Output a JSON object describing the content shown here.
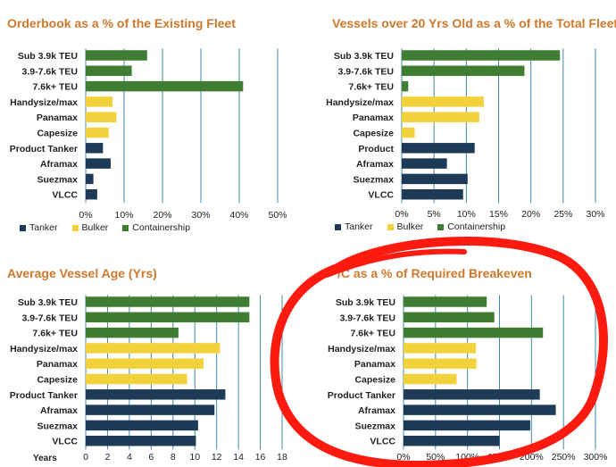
{
  "colors": {
    "tanker": "#1d3b57",
    "bulker": "#f2d23a",
    "containership": "#3e7d32",
    "title": "#d0782c",
    "gridline": "#3f8aa6",
    "annotation": "#ff1a10"
  },
  "legend": {
    "tanker": "Tanker",
    "bulker": "Bulker",
    "containership": "Containership"
  },
  "chart_data": [
    {
      "type": "bar",
      "orientation": "horizontal",
      "title": "Orderbook as a % of the Existing Fleet",
      "categories": [
        "Sub 3.9k TEU",
        "3.9-7.6k TEU",
        "7.6k+ TEU",
        "Handysize/max",
        "Panamax",
        "Capesize",
        "Product Tanker",
        "Aframax",
        "Suezmax",
        "VLCC"
      ],
      "values": [
        16,
        12,
        41,
        7,
        8,
        6,
        4.5,
        6.5,
        2,
        3
      ],
      "groups": [
        "containership",
        "containership",
        "containership",
        "bulker",
        "bulker",
        "bulker",
        "tanker",
        "tanker",
        "tanker",
        "tanker"
      ],
      "ticks": [
        "0%",
        "10%",
        "20%",
        "30%",
        "40%",
        "50%"
      ],
      "xlim": [
        0,
        50
      ],
      "grid": true,
      "legend_position": "bottom"
    },
    {
      "type": "bar",
      "orientation": "horizontal",
      "title": "Vessels over 20 Yrs Old as a % of the Total Fleet",
      "categories": [
        "Sub 3.9k TEU",
        "3.9-7.6k TEU",
        "7.6k+ TEU",
        "Handysize/max",
        "Panamax",
        "Capesize",
        "Product",
        "Aframax",
        "Suezmax",
        "VLCC"
      ],
      "values": [
        24.5,
        19,
        1,
        12.7,
        12,
        2,
        11.3,
        7,
        10.2,
        9.5
      ],
      "groups": [
        "containership",
        "containership",
        "containership",
        "bulker",
        "bulker",
        "bulker",
        "tanker",
        "tanker",
        "tanker",
        "tanker"
      ],
      "ticks": [
        "0%",
        "5%",
        "10%",
        "15%",
        "20%",
        "25%",
        "30%"
      ],
      "xlim": [
        0,
        30
      ],
      "grid": true,
      "legend_position": "bottom"
    },
    {
      "type": "bar",
      "orientation": "horizontal",
      "title": "Average Vessel Age (Yrs)",
      "categories": [
        "Sub 3.9k TEU",
        "3.9-7.6k TEU",
        "7.6k+ TEU",
        "Handysize/max",
        "Panamax",
        "Capesize",
        "Product Tanker",
        "Aframax",
        "Suezmax",
        "VLCC"
      ],
      "values": [
        15,
        15,
        8.5,
        12.3,
        10.8,
        9.3,
        12.8,
        11.8,
        10.3,
        10.1
      ],
      "groups": [
        "containership",
        "containership",
        "containership",
        "bulker",
        "bulker",
        "bulker",
        "tanker",
        "tanker",
        "tanker",
        "tanker"
      ],
      "ticks": [
        "0",
        "2",
        "4",
        "6",
        "8",
        "10",
        "12",
        "14",
        "16",
        "18"
      ],
      "xlim": [
        0,
        18
      ],
      "xlabel": "Years",
      "grid": true
    },
    {
      "type": "bar",
      "orientation": "horizontal",
      "title": "T/C as a % of Required Breakeven",
      "title_visible": "/C as a % of Required Breakeven",
      "categories": [
        "Sub 3.9k TEU",
        "3.9-7.6k TEU",
        "7.6k+ TEU",
        "Handysize/max",
        "Panamax",
        "Capesize",
        "Product Tanker",
        "Aframax",
        "Suezmax",
        "VLCC"
      ],
      "values": [
        130,
        142,
        218,
        113,
        114,
        83,
        213,
        238,
        198,
        150
      ],
      "groups": [
        "containership",
        "containership",
        "containership",
        "bulker",
        "bulker",
        "bulker",
        "tanker",
        "tanker",
        "tanker",
        "tanker"
      ],
      "ticks": [
        "0%",
        "50%",
        "100%",
        "150%",
        "200%",
        "250%",
        "300%"
      ],
      "xlim": [
        0,
        300
      ],
      "grid": true
    }
  ]
}
